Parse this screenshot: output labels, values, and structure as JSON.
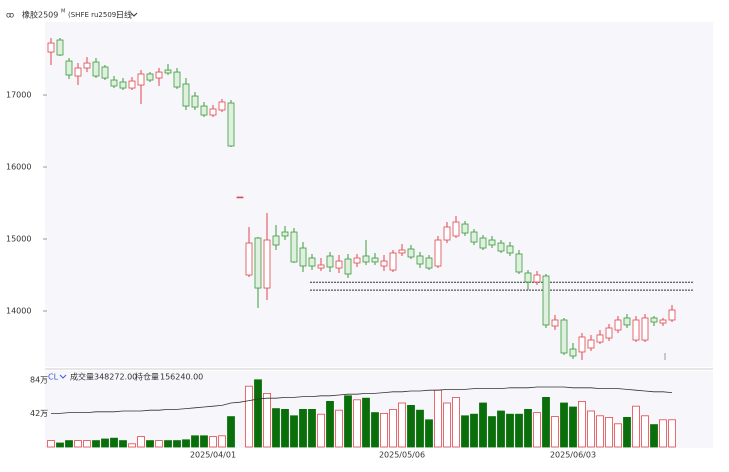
{
  "header": {
    "title": "橡胶2509",
    "superscript": "M",
    "code": "(SHFE ru2509)",
    "period": "日线"
  },
  "chart_data": [
    {
      "type": "candlestick",
      "categories": [
        null,
        null,
        null,
        null,
        null,
        null,
        null,
        null,
        null,
        null,
        null,
        null,
        null,
        null,
        null,
        null,
        null,
        null,
        "2025/04/01",
        null,
        null,
        null,
        null,
        null,
        null,
        null,
        null,
        null,
        null,
        null,
        null,
        null,
        null,
        null,
        null,
        null,
        null,
        null,
        null,
        "2025/05/06",
        null,
        null,
        null,
        null,
        null,
        null,
        null,
        null,
        null,
        null,
        null,
        null,
        null,
        null,
        null,
        null,
        null,
        null,
        "2025/06/03",
        null,
        null,
        null,
        null,
        null,
        null,
        null,
        null,
        null,
        null,
        null
      ],
      "open": [
        17597,
        17764,
        17472,
        17264,
        17375,
        17458,
        17389,
        17208,
        17181,
        17097,
        17139,
        17292,
        17236,
        17347,
        17319,
        17153,
        16986,
        16847,
        16722,
        16792,
        16889,
        15583,
        14500,
        15014,
        14319,
        15042,
        15097,
        15097,
        14875,
        14736,
        14597,
        14764,
        14597,
        14722,
        14667,
        14764,
        14736,
        14625,
        14569,
        14806,
        14861,
        14764,
        14736,
        14625,
        14986,
        15042,
        15208,
        15097,
        15014,
        14986,
        14944,
        14903,
        14792,
        14528,
        14403,
        14486,
        13792,
        13875,
        13472,
        13431,
        13486,
        13569,
        13625,
        13736,
        13903,
        13597,
        13597,
        13903,
        13833,
        13875
      ],
      "high": [
        17792,
        17792,
        17514,
        17444,
        17528,
        17514,
        17417,
        17264,
        17236,
        17250,
        17347,
        17319,
        17375,
        17431,
        17375,
        17236,
        17042,
        16903,
        16861,
        16944,
        16931,
        15583,
        15167,
        15028,
        15361,
        15194,
        15181,
        15153,
        14958,
        14792,
        14736,
        14819,
        14778,
        14792,
        14792,
        14986,
        14806,
        14778,
        14847,
        14931,
        14917,
        14819,
        14778,
        15042,
        15236,
        15319,
        15250,
        15139,
        15056,
        15042,
        14986,
        14958,
        14847,
        14569,
        14556,
        14514,
        13944,
        13903,
        13556,
        13694,
        13667,
        13736,
        13819,
        13931,
        13958,
        13931,
        13958,
        13931,
        13903,
        14083
      ],
      "low": [
        17417,
        17542,
        17222,
        17139,
        17319,
        17236,
        17208,
        17097,
        17069,
        17069,
        16875,
        17181,
        17125,
        17278,
        17083,
        16792,
        16792,
        16694,
        16694,
        16764,
        16278,
        15583,
        14472,
        14042,
        14153,
        14847,
        14986,
        14667,
        14542,
        14569,
        14556,
        14542,
        14528,
        14458,
        14611,
        14639,
        14639,
        14556,
        14542,
        14764,
        14722,
        14597,
        14569,
        14597,
        14944,
        15014,
        15042,
        14917,
        14847,
        14875,
        14806,
        14764,
        14514,
        14292,
        14361,
        13764,
        13736,
        13389,
        13333,
        13319,
        13444,
        13542,
        13583,
        13694,
        13764,
        13569,
        13569,
        13792,
        13792,
        13847
      ],
      "close": [
        17722,
        17556,
        17278,
        17375,
        17444,
        17264,
        17236,
        17125,
        17097,
        17194,
        17292,
        17208,
        17319,
        17306,
        17111,
        16847,
        16833,
        16722,
        16806,
        16903,
        16292,
        15583,
        14944,
        14319,
        14986,
        14917,
        15042,
        14681,
        14625,
        14625,
        14639,
        14611,
        14694,
        14514,
        14736,
        14681,
        14681,
        14694,
        14806,
        14847,
        14750,
        14653,
        14597,
        14986,
        15167,
        15236,
        15083,
        14958,
        14875,
        14917,
        14833,
        14806,
        14542,
        14403,
        14500,
        13806,
        13875,
        13417,
        13375,
        13639,
        13597,
        13667,
        13764,
        13875,
        13806,
        13875,
        13903,
        13847,
        13875,
        14014
      ],
      "up_color": "#e0474c",
      "down_color": "#3b9a3b",
      "ylim": [
        13250,
        18042
      ],
      "yticks": [
        14000,
        15000,
        16000,
        17000
      ],
      "hlines": [
        14400,
        14290
      ]
    },
    {
      "type": "volume",
      "indicator": "CL",
      "series": [
        {
          "name": "成交量",
          "latest": "348272.00",
          "values": [
            8,
            5,
            8,
            8,
            8,
            8,
            10,
            11,
            8,
            4,
            13,
            8,
            8,
            8,
            8,
            9,
            14,
            14,
            13,
            14,
            38,
            null,
            76,
            84,
            67,
            48,
            47,
            39,
            47,
            47,
            41,
            57,
            46,
            64,
            59,
            61,
            43,
            42,
            47,
            55,
            52,
            46,
            34,
            71,
            55,
            62,
            39,
            41,
            55,
            38,
            45,
            41,
            41,
            47,
            43,
            62,
            38,
            55,
            50,
            57,
            45,
            39,
            37,
            29,
            37,
            51,
            39,
            28,
            34,
            34
          ]
        },
        {
          "name": "持仓量",
          "latest": "156240.00",
          "color": "#333333",
          "values": [
            42,
            42,
            43,
            43,
            43,
            44,
            44,
            44,
            45,
            45,
            45,
            46,
            46,
            47,
            47,
            48,
            49,
            50,
            51,
            52,
            55,
            56,
            58,
            60,
            61,
            61,
            62,
            62,
            63,
            63,
            64,
            64,
            65,
            66,
            66,
            67,
            67,
            68,
            69,
            69,
            70,
            70,
            71,
            71,
            72,
            72,
            72,
            73,
            73,
            73,
            73,
            74,
            74,
            74,
            75,
            75,
            75,
            75,
            74,
            74,
            74,
            73,
            73,
            73,
            72,
            71,
            70,
            69,
            69,
            68
          ]
        }
      ],
      "ylim": [
        0,
        95
      ],
      "yticks": [
        {
          "value": 42,
          "label": "42万"
        },
        {
          "value": 84,
          "label": "84万"
        }
      ]
    }
  ]
}
